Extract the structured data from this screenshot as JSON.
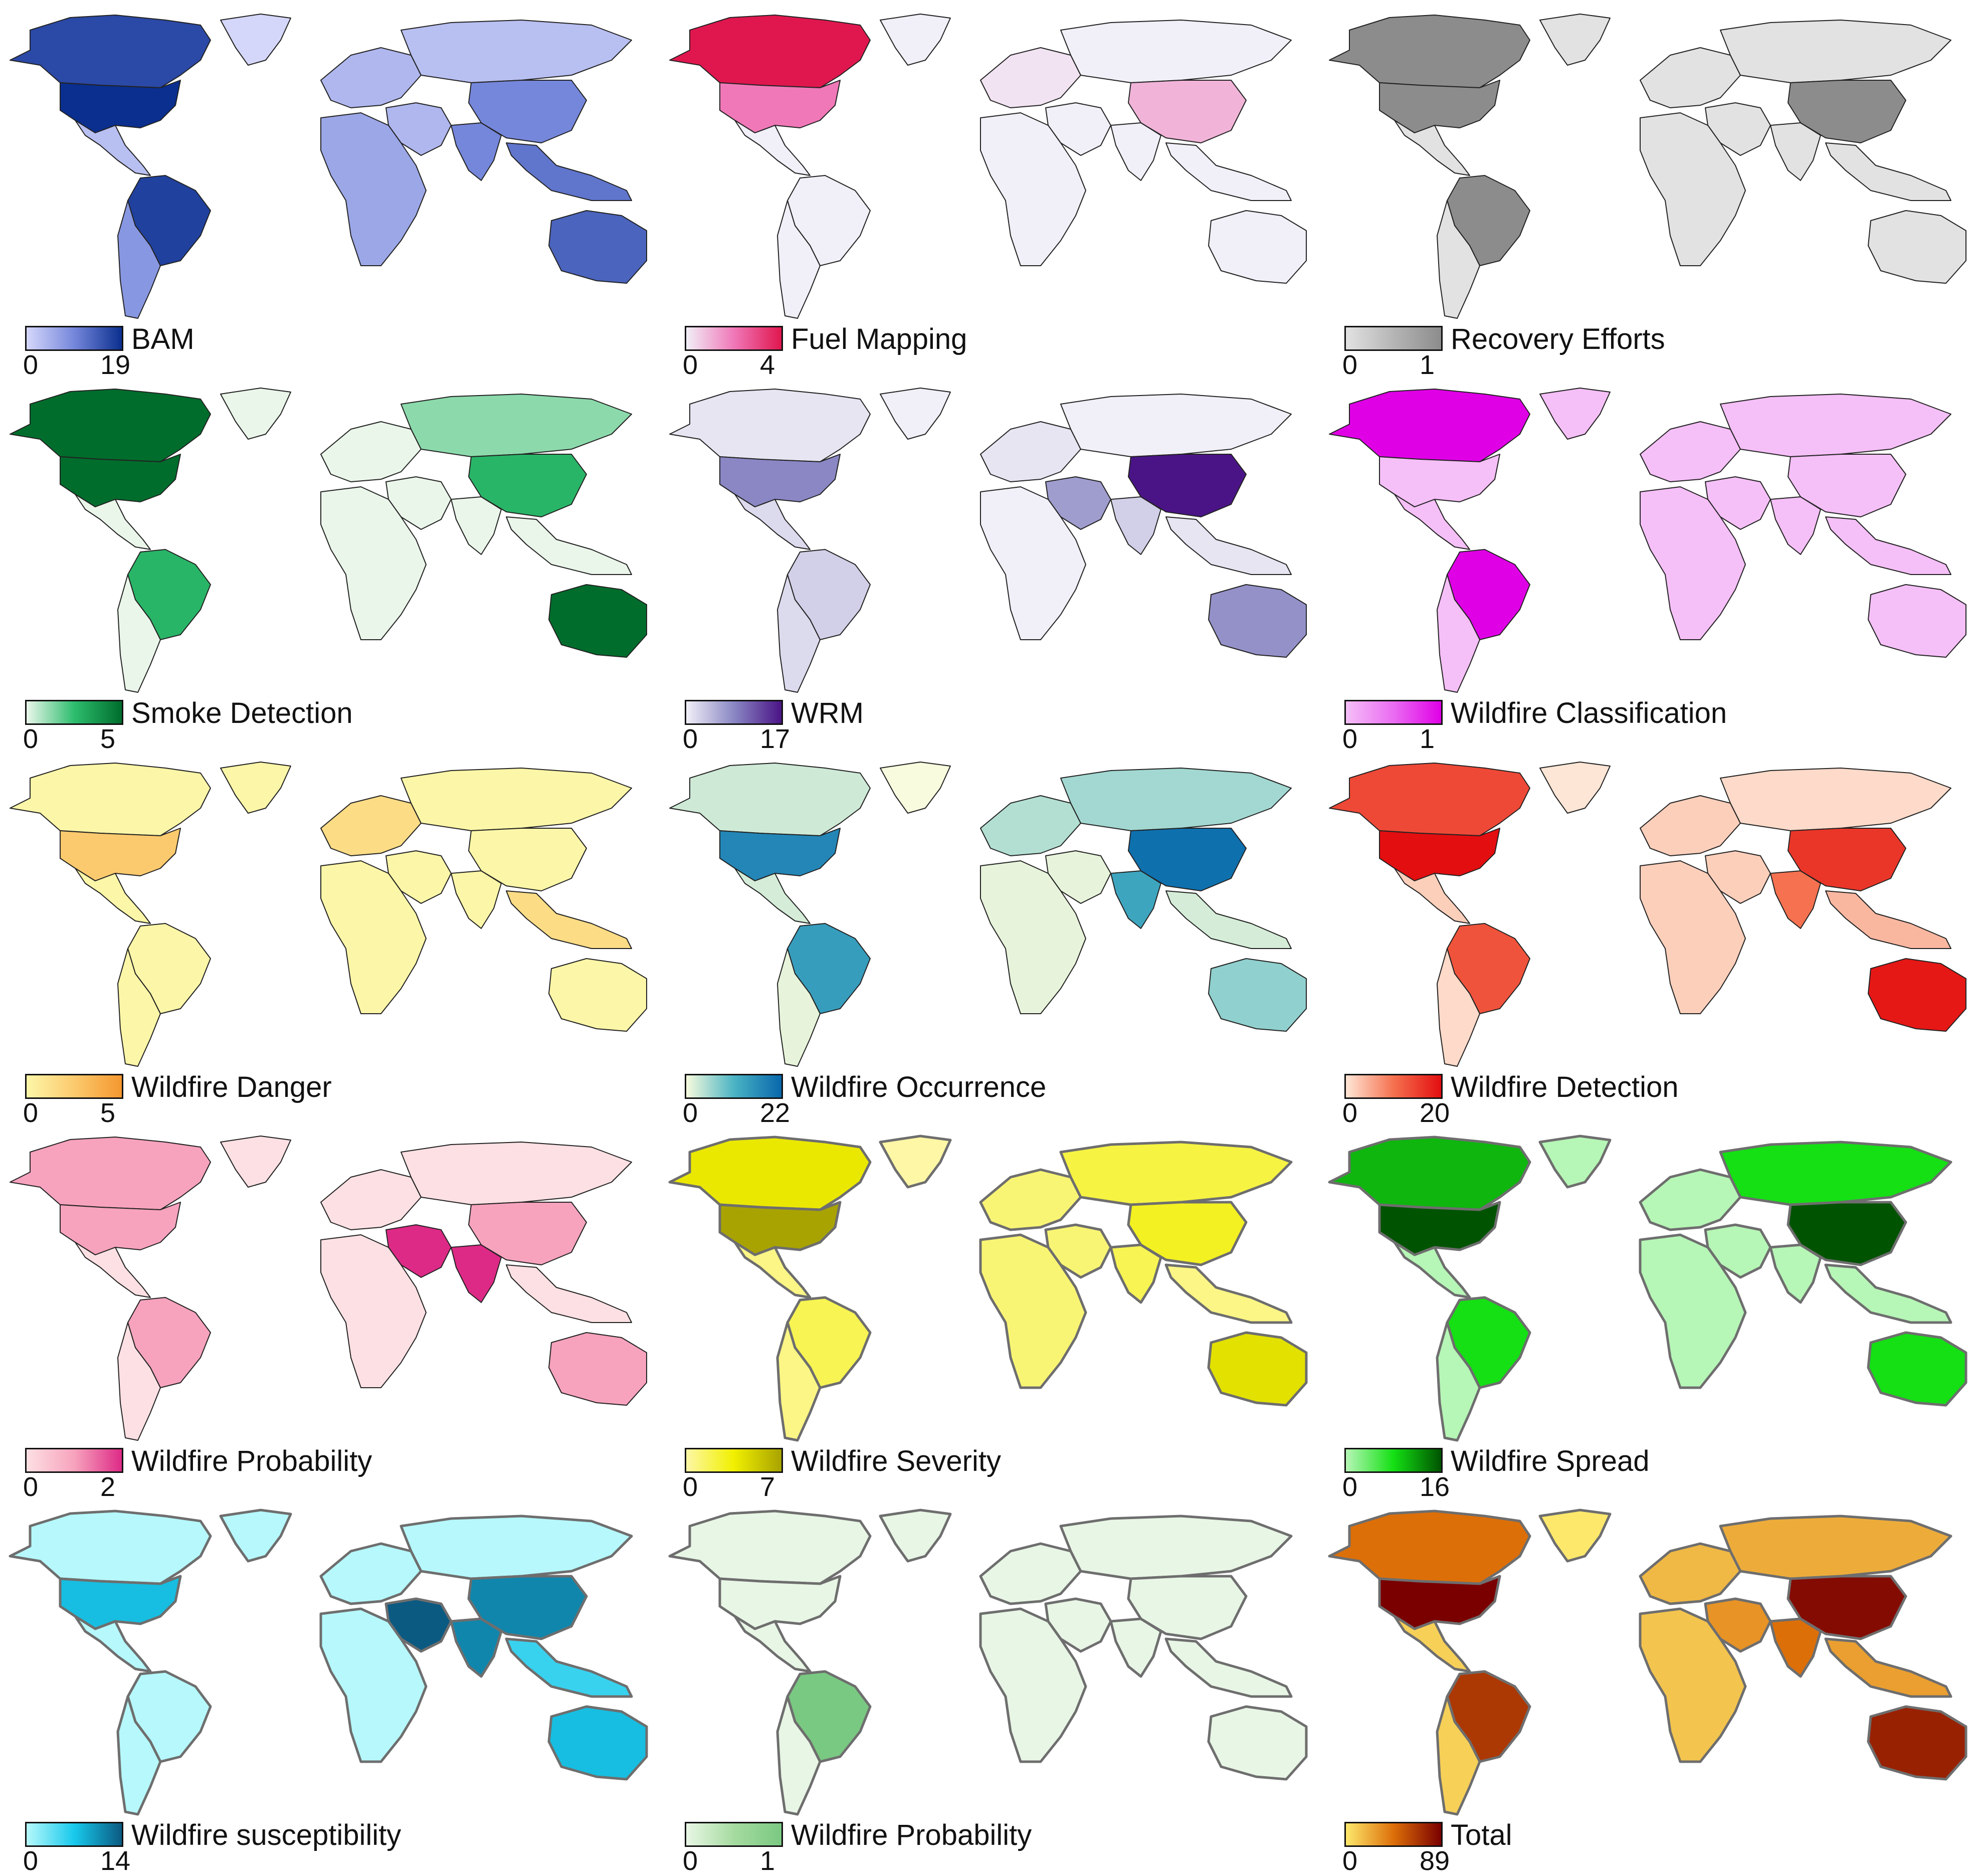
{
  "panels": [
    {
      "title": "BAM",
      "min": "0",
      "max": "19",
      "colors": {
        "low": "#d5d7fa",
        "mid": "#7587db",
        "high": "#0b2f8f",
        "na": "#d5d7fa"
      },
      "levels": {
        "northAmerica": 0.85,
        "usa": 1.0,
        "latinAmerica": 0.15,
        "brazil": 0.9,
        "southernCone": 0.4,
        "greenland": 0.0,
        "europe": 0.2,
        "russia": 0.15,
        "middleEast": 0.2,
        "india": 0.5,
        "china": 0.5,
        "africa": 0.3,
        "seAsia": 0.6,
        "australia": 0.7
      }
    },
    {
      "title": "Fuel Mapping",
      "min": "0",
      "max": "4",
      "colors": {
        "low": "#f1eff7",
        "mid": "#f078b8",
        "high": "#e0174f",
        "na": "#f1eff7"
      },
      "levels": {
        "northAmerica": 1.0,
        "usa": 0.5,
        "latinAmerica": 0.0,
        "brazil": 0.0,
        "southernCone": 0.0,
        "greenland": 0.0,
        "europe": 0.05,
        "russia": 0.0,
        "middleEast": 0.0,
        "india": 0.0,
        "china": 0.25,
        "africa": 0.0,
        "seAsia": 0.0,
        "australia": 0.0
      }
    },
    {
      "title": "Recovery Efforts",
      "min": "0",
      "max": "1",
      "colors": {
        "low": "#e2e2e2",
        "mid": "#b5b5b5",
        "high": "#8c8c8c",
        "na": "#e2e2e2"
      },
      "levels": {
        "northAmerica": 1.0,
        "usa": 1.0,
        "latinAmerica": 0.0,
        "brazil": 1.0,
        "southernCone": 0.0,
        "greenland": 0.0,
        "europe": 0.0,
        "russia": 0.0,
        "middleEast": 0.0,
        "india": 0.0,
        "china": 1.0,
        "africa": 0.0,
        "seAsia": 0.0,
        "australia": 0.0
      }
    },
    {
      "title": "Smoke Detection",
      "min": "0",
      "max": "5",
      "colors": {
        "low": "#eaf6ea",
        "mid": "#2dbd6e",
        "high": "#006d2c",
        "na": "#eaf6ea"
      },
      "levels": {
        "northAmerica": 1.0,
        "usa": 1.0,
        "latinAmerica": 0.0,
        "brazil": 0.55,
        "southernCone": 0.0,
        "greenland": 0.0,
        "europe": 0.0,
        "russia": 0.25,
        "middleEast": 0.0,
        "india": 0.0,
        "china": 0.55,
        "africa": 0.0,
        "seAsia": 0.0,
        "australia": 1.0
      }
    },
    {
      "title": "WRM",
      "min": "0",
      "max": "17",
      "colors": {
        "low": "#f1eff7",
        "mid": "#8a87c4",
        "high": "#4a1486",
        "na": "#f1eff7"
      },
      "levels": {
        "northAmerica": 0.05,
        "usa": 0.5,
        "latinAmerica": 0.1,
        "brazil": 0.15,
        "southernCone": 0.1,
        "greenland": 0.0,
        "europe": 0.05,
        "russia": 0.0,
        "middleEast": 0.4,
        "india": 0.15,
        "china": 1.0,
        "africa": 0.0,
        "seAsia": 0.05,
        "australia": 0.45
      }
    },
    {
      "title": "Wildfire Classification",
      "min": "0",
      "max": "1",
      "colors": {
        "low": "#f5bff7",
        "mid": "#ea6cf2",
        "high": "#e000e6",
        "na": "#f5bff7"
      },
      "levels": {
        "northAmerica": 1.0,
        "usa": 0.0,
        "latinAmerica": 0.0,
        "brazil": 1.0,
        "southernCone": 0.0,
        "greenland": 0.0,
        "europe": 0.0,
        "russia": 0.0,
        "middleEast": 0.0,
        "india": 0.0,
        "china": 0.0,
        "africa": 0.0,
        "seAsia": 0.0,
        "australia": 0.0
      }
    },
    {
      "title": "Wildfire Danger",
      "min": "0",
      "max": "5",
      "colors": {
        "low": "#fcf6a8",
        "mid": "#fcca6e",
        "high": "#f4972f",
        "na": "#fcf6a8"
      },
      "levels": {
        "northAmerica": 0.0,
        "usa": 0.5,
        "latinAmerica": 0.0,
        "brazil": 0.0,
        "southernCone": 0.0,
        "greenland": 0.0,
        "europe": 0.3,
        "russia": 0.0,
        "middleEast": 0.0,
        "india": 0.0,
        "china": 0.0,
        "africa": 0.0,
        "seAsia": 0.3,
        "australia": 0.0
      }
    },
    {
      "title": "Wildfire Occurrence",
      "min": "0",
      "max": "22",
      "colors": {
        "low": "#f8fbdd",
        "mid": "#4bb4c4",
        "high": "#0868ac",
        "na": "#f8fbdd"
      },
      "levels": {
        "northAmerica": 0.12,
        "usa": 0.8,
        "latinAmerica": 0.1,
        "brazil": 0.65,
        "southernCone": 0.05,
        "greenland": 0.0,
        "europe": 0.2,
        "russia": 0.25,
        "middleEast": 0.05,
        "india": 0.6,
        "china": 0.95,
        "africa": 0.05,
        "seAsia": 0.1,
        "australia": 0.3
      }
    },
    {
      "title": "Wildfire Detection",
      "min": "0",
      "max": "20",
      "colors": {
        "low": "#fee6d6",
        "mid": "#f5714f",
        "high": "#e30e10",
        "na": "#fee6d6"
      },
      "levels": {
        "northAmerica": 0.7,
        "usa": 1.0,
        "latinAmerica": 0.1,
        "brazil": 0.65,
        "southernCone": 0.05,
        "greenland": 0.0,
        "europe": 0.1,
        "russia": 0.05,
        "middleEast": 0.1,
        "india": 0.5,
        "china": 0.8,
        "africa": 0.1,
        "seAsia": 0.2,
        "australia": 0.95
      }
    },
    {
      "title": "Wildfire Probability",
      "min": "0",
      "max": "2",
      "colors": {
        "low": "#fde0e3",
        "mid": "#f7a3bd",
        "high": "#dd2a86",
        "na": "#fde0e3"
      },
      "levels": {
        "northAmerica": 0.5,
        "usa": 0.5,
        "latinAmerica": 0.0,
        "brazil": 0.5,
        "southernCone": 0.0,
        "greenland": 0.0,
        "europe": 0.0,
        "russia": 0.0,
        "middleEast": 1.0,
        "india": 1.0,
        "china": 0.5,
        "africa": 0.0,
        "seAsia": 0.0,
        "australia": 0.5
      }
    },
    {
      "title": "Wildfire Severity",
      "min": "0",
      "max": "7",
      "colors": {
        "low": "#fdf7a6",
        "mid": "#f1f000",
        "high": "#a8a300",
        "na": "#fdf7a6"
      },
      "levels": {
        "northAmerica": 0.55,
        "usa": 1.0,
        "latinAmerica": 0.1,
        "brazil": 0.25,
        "southernCone": 0.1,
        "greenland": 0.0,
        "europe": 0.15,
        "russia": 0.3,
        "middleEast": 0.15,
        "india": 0.25,
        "china": 0.4,
        "africa": 0.15,
        "seAsia": 0.1,
        "australia": 0.6
      }
    },
    {
      "title": "Wildfire Spread",
      "min": "0",
      "max": "16",
      "colors": {
        "low": "#b6f6b6",
        "mid": "#14e014",
        "high": "#005300",
        "na": "#b6f6b6"
      },
      "levels": {
        "northAmerica": 0.65,
        "usa": 1.0,
        "latinAmerica": 0.0,
        "brazil": 0.5,
        "southernCone": 0.0,
        "greenland": 0.0,
        "europe": 0.0,
        "russia": 0.5,
        "middleEast": 0.0,
        "india": 0.0,
        "china": 1.0,
        "africa": 0.0,
        "seAsia": 0.0,
        "australia": 0.5
      }
    },
    {
      "title": "Wildfire susceptibility",
      "min": "0",
      "max": "14",
      "colors": {
        "low": "#b6f8fb",
        "mid": "#18c9ec",
        "high": "#0b5a82",
        "na": "#b6f8fb"
      },
      "levels": {
        "northAmerica": 0.0,
        "usa": 0.55,
        "latinAmerica": 0.0,
        "brazil": 0.0,
        "southernCone": 0.0,
        "greenland": 0.0,
        "europe": 0.0,
        "russia": 0.0,
        "middleEast": 1.0,
        "india": 0.8,
        "china": 0.8,
        "africa": 0.0,
        "seAsia": 0.4,
        "australia": 0.55
      }
    },
    {
      "title": "Wildfire Probability",
      "min": "0",
      "max": "1",
      "colors": {
        "low": "#e8f6e5",
        "mid": "#a6dba0",
        "high": "#7ac982",
        "na": "#e8f6e5"
      },
      "levels": {
        "northAmerica": 0.0,
        "usa": 0.0,
        "latinAmerica": 0.0,
        "brazil": 1.0,
        "southernCone": 0.0,
        "greenland": 0.0,
        "europe": 0.0,
        "russia": 0.0,
        "middleEast": 0.0,
        "india": 0.0,
        "china": 0.0,
        "africa": 0.0,
        "seAsia": 0.0,
        "australia": 0.0
      }
    },
    {
      "title": "Total",
      "min": "0",
      "max": "89",
      "colors": {
        "low": "#fde86c",
        "mid": "#dd6f08",
        "high": "#7a0000",
        "na": "#fde86c"
      },
      "levels": {
        "northAmerica": 0.5,
        "usa": 1.0,
        "latinAmerica": 0.1,
        "brazil": 0.75,
        "southernCone": 0.1,
        "greenland": 0.0,
        "europe": 0.2,
        "russia": 0.25,
        "middleEast": 0.35,
        "india": 0.5,
        "china": 0.95,
        "africa": 0.15,
        "seAsia": 0.3,
        "australia": 0.85
      }
    }
  ]
}
